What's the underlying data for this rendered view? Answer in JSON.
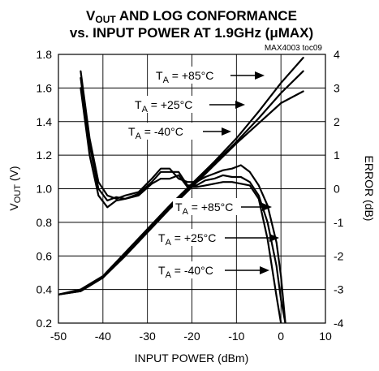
{
  "chart_data": {
    "type": "line",
    "title_line1": "V",
    "title_sub1": "OUT",
    "title_line1_rest": " AND LOG CONFORMANCE",
    "title_line2": "vs. INPUT POWER AT 1.9GHz (μMAX)",
    "note": "MAX4003 toc09",
    "xlabel": "INPUT POWER (dBm)",
    "ylabel_main": "V",
    "ylabel_sub": "OUT",
    "ylabel_rest": " (V)",
    "y2label": "ERROR (dB)",
    "xlim": [
      -50,
      10
    ],
    "ylim": [
      0.2,
      1.8
    ],
    "y2lim": [
      -4,
      4
    ],
    "x_ticks": [
      -50,
      -40,
      -30,
      -20,
      -10,
      0,
      10
    ],
    "x_tick_labels": [
      "-50",
      "-40",
      "-30",
      "-20",
      "-10",
      "0",
      "10"
    ],
    "y_ticks": [
      0.2,
      0.4,
      0.6,
      0.8,
      1.0,
      1.2,
      1.4,
      1.6,
      1.8
    ],
    "y_tick_labels": [
      "0.2",
      "0.4",
      "0.6",
      "0.8",
      "1.0",
      "1.2",
      "1.4",
      "1.6",
      "1.8"
    ],
    "y2_ticks": [
      -4,
      -3,
      -2,
      -1,
      0,
      1,
      2,
      3,
      4
    ],
    "y2_tick_labels": [
      "-4",
      "-3",
      "-2",
      "-1",
      "0",
      "1",
      "2",
      "3",
      "4"
    ],
    "grid": true,
    "vout_series": [
      {
        "name": "TA = +85°C",
        "x": [
          -50,
          -45,
          -40,
          -35,
          -30,
          -25,
          -20,
          -15,
          -10,
          -5,
          0,
          5
        ],
        "y": [
          0.37,
          0.4,
          0.48,
          0.62,
          0.76,
          0.9,
          1.03,
          1.16,
          1.3,
          1.46,
          1.63,
          1.78
        ]
      },
      {
        "name": "TA = +25°C",
        "x": [
          -50,
          -45,
          -40,
          -35,
          -30,
          -25,
          -20,
          -15,
          -10,
          -5,
          0,
          5
        ],
        "y": [
          0.37,
          0.39,
          0.47,
          0.61,
          0.75,
          0.89,
          1.02,
          1.15,
          1.28,
          1.42,
          1.57,
          1.7
        ]
      },
      {
        "name": "TA = -40°C",
        "x": [
          -50,
          -45,
          -40,
          -35,
          -30,
          -25,
          -20,
          -15,
          -10,
          -5,
          0,
          5
        ],
        "y": [
          0.37,
          0.39,
          0.47,
          0.6,
          0.74,
          0.88,
          1.01,
          1.14,
          1.27,
          1.39,
          1.51,
          1.58
        ]
      }
    ],
    "error_series": [
      {
        "name": "TA = +85°C",
        "x": [
          -45,
          -43,
          -41,
          -39,
          -37,
          -35,
          -32,
          -29,
          -27,
          -25,
          -23,
          -21,
          -19,
          -17,
          -15,
          -13,
          -11,
          -9,
          -7,
          -5,
          -3,
          -1,
          0,
          1
        ],
        "y": [
          3.5,
          1.5,
          0.2,
          -0.2,
          -0.3,
          -0.2,
          -0.1,
          0.3,
          0.6,
          0.6,
          0.3,
          0.2,
          0.2,
          0.35,
          0.45,
          0.55,
          0.6,
          0.7,
          0.5,
          0.1,
          -0.5,
          -1.6,
          -2.6,
          -4
        ]
      },
      {
        "name": "TA = +25°C",
        "x": [
          -45,
          -43,
          -41,
          -39,
          -37,
          -35,
          -32,
          -29,
          -27,
          -25,
          -23,
          -21,
          -19,
          -17,
          -15,
          -13,
          -11,
          -9,
          -7,
          -5,
          -3,
          -1,
          0,
          1
        ],
        "y": [
          3.3,
          1.3,
          0.0,
          -0.35,
          -0.25,
          -0.3,
          -0.15,
          0.2,
          0.5,
          0.5,
          0.5,
          0.1,
          0.1,
          0.25,
          0.3,
          0.4,
          0.35,
          0.35,
          0.2,
          -0.2,
          -1.0,
          -2.3,
          -3.3,
          -4
        ]
      },
      {
        "name": "TA = -40°C",
        "x": [
          -45,
          -43,
          -41,
          -39,
          -37,
          -35,
          -32,
          -29,
          -27,
          -25,
          -23,
          -21,
          -19,
          -17,
          -15,
          -13,
          -11,
          -9,
          -7,
          -5,
          -3,
          -1,
          0
        ],
        "y": [
          3.0,
          1.0,
          -0.2,
          -0.55,
          -0.35,
          -0.3,
          -0.2,
          0.15,
          0.3,
          0.3,
          0.4,
          0.05,
          0.05,
          0.1,
          0.15,
          0.2,
          0.2,
          0.15,
          0.1,
          -0.3,
          -1.5,
          -3.2,
          -4
        ]
      }
    ],
    "annotations": [
      {
        "group": "vout",
        "label_main": "T",
        "label_sub": "A",
        "label_rest": " = +85°C"
      },
      {
        "group": "vout",
        "label_main": "T",
        "label_sub": "A",
        "label_rest": " = +25°C"
      },
      {
        "group": "vout",
        "label_main": "T",
        "label_sub": "A",
        "label_rest": " = -40°C"
      },
      {
        "group": "error",
        "label_main": "T",
        "label_sub": "A",
        "label_rest": " = +85°C"
      },
      {
        "group": "error",
        "label_main": "T",
        "label_sub": "A",
        "label_rest": " = +25°C"
      },
      {
        "group": "error",
        "label_main": "T",
        "label_sub": "A",
        "label_rest": " = -40°C"
      }
    ]
  }
}
